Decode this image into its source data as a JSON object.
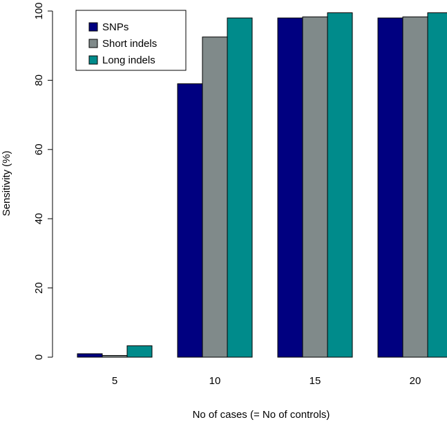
{
  "chart_data": {
    "type": "bar",
    "title": "",
    "xlabel": "No of cases (= No of controls)",
    "ylabel": "Sensitivity (%)",
    "categories": [
      "5",
      "10",
      "15",
      "20"
    ],
    "series": [
      {
        "name": "SNPs",
        "color": "#000080",
        "values": [
          1.0,
          79.0,
          98.0,
          98.0
        ]
      },
      {
        "name": "Short indels",
        "color": "#808A8A",
        "values": [
          0.5,
          92.5,
          98.3,
          98.3
        ]
      },
      {
        "name": "Long indels",
        "color": "#008B8B",
        "values": [
          3.3,
          98.0,
          99.5,
          99.5
        ]
      }
    ],
    "ylim": [
      0,
      100
    ],
    "yticks": [
      0,
      20,
      40,
      60,
      80,
      100
    ],
    "grid": false,
    "legend_position": "top-left"
  }
}
